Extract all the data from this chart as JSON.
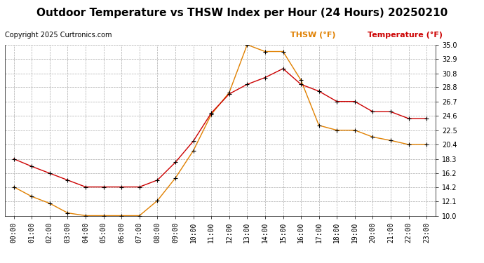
{
  "title": "Outdoor Temperature vs THSW Index per Hour (24 Hours) 20250210",
  "copyright": "Copyright 2025 Curtronics.com",
  "legend_thsw": "THSW (°F)",
  "legend_temp": "Temperature (°F)",
  "hours": [
    "00:00",
    "01:00",
    "02:00",
    "03:00",
    "04:00",
    "05:00",
    "06:00",
    "07:00",
    "08:00",
    "09:00",
    "10:00",
    "11:00",
    "12:00",
    "13:00",
    "14:00",
    "15:00",
    "16:00",
    "17:00",
    "18:00",
    "19:00",
    "20:00",
    "21:00",
    "22:00",
    "23:00"
  ],
  "temperature": [
    18.3,
    17.2,
    16.2,
    15.2,
    14.2,
    14.2,
    14.2,
    14.2,
    15.2,
    17.8,
    20.9,
    25.0,
    27.8,
    29.2,
    30.2,
    31.5,
    29.2,
    28.2,
    26.7,
    26.7,
    25.2,
    25.2,
    24.2,
    24.2
  ],
  "thsw": [
    14.2,
    12.8,
    11.8,
    10.4,
    10.0,
    10.0,
    10.0,
    10.0,
    12.2,
    15.5,
    19.5,
    24.8,
    28.0,
    35.0,
    34.0,
    34.0,
    29.8,
    23.2,
    22.5,
    22.5,
    21.5,
    21.0,
    20.4,
    20.4
  ],
  "temp_color": "#cc0000",
  "thsw_color": "#e08000",
  "marker_color": "black",
  "ylim_min": 10.0,
  "ylim_max": 35.0,
  "yticks": [
    10.0,
    12.1,
    14.2,
    16.2,
    18.3,
    20.4,
    22.5,
    24.6,
    26.7,
    28.8,
    30.8,
    32.9,
    35.0
  ],
  "bg_color": "#ffffff",
  "grid_color": "#aaaaaa",
  "title_fontsize": 11,
  "copyright_fontsize": 7,
  "legend_fontsize": 8,
  "tick_fontsize": 7
}
